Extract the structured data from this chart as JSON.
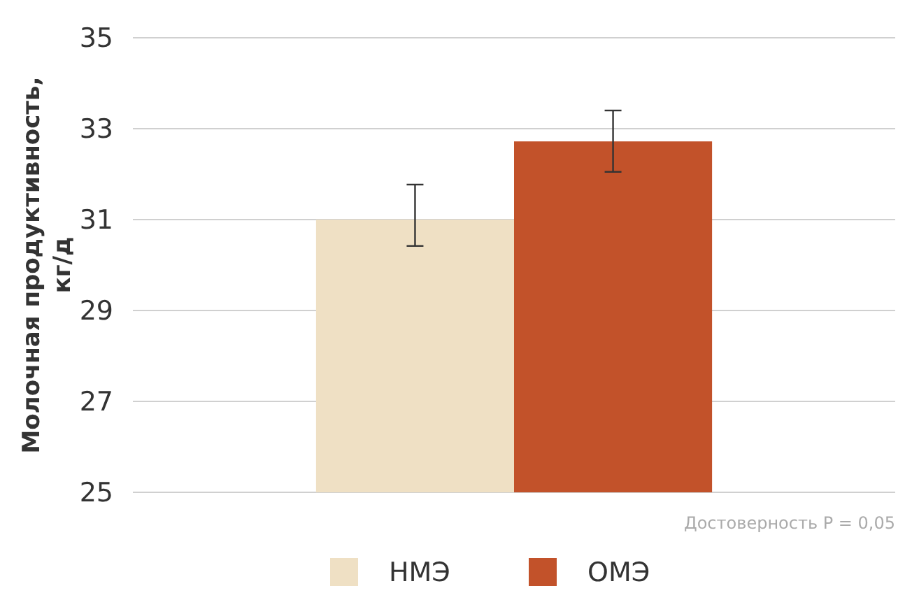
{
  "chart_data": {
    "type": "bar",
    "ylabel": "Молочная продуктивность, кг/д",
    "categories": [
      null
    ],
    "series": [
      {
        "name": "НМЭ",
        "color": "#efe0c4",
        "values": [
          31.0
        ],
        "errors": [
          [
            30.42,
            31.77
          ]
        ]
      },
      {
        "name": "ОМЭ",
        "color": "#c2522a",
        "values": [
          32.72
        ],
        "errors": [
          [
            32.05,
            33.4
          ]
        ]
      }
    ],
    "ylim": [
      25,
      35
    ],
    "yticks": [
      25,
      27,
      29,
      31,
      33,
      35
    ],
    "grid": "y",
    "legend": "bottom",
    "annotations": [
      "Достоверность P = 0,05"
    ]
  }
}
